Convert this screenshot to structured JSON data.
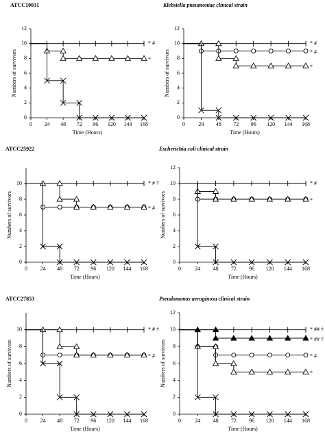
{
  "chart_data": [
    {
      "type": "line",
      "title": "ATCC10031",
      "xlabel": "Time (Hours)",
      "ylabel": "Numbers of survivors",
      "x": [
        0,
        24,
        48,
        72,
        96,
        120,
        144,
        168
      ],
      "xlim": [
        0,
        168
      ],
      "xticks": [
        0,
        24,
        48,
        72,
        96,
        120,
        144,
        168
      ],
      "ylim": [
        0,
        12
      ],
      "yticks": [
        0,
        2,
        4,
        6,
        8,
        10,
        12
      ],
      "series": [
        {
          "marker": "plus",
          "color": "#000",
          "values": [
            10,
            10,
            10,
            10,
            10,
            10,
            10,
            10
          ],
          "annotation": "* #"
        },
        {
          "marker": "triangle",
          "color": "#000",
          "values": [
            10,
            9,
            8,
            8,
            8,
            8,
            8,
            8
          ],
          "annotation": "*"
        },
        {
          "marker": "cross",
          "color": "#000",
          "values": [
            10,
            5,
            2,
            0,
            0,
            0,
            0,
            0
          ]
        }
      ]
    },
    {
      "type": "line",
      "title": "Klebsiella pneumoniae clinical strain",
      "xlabel": "Time (Hours)",
      "ylabel": "Numbers of survivors",
      "x": [
        0,
        24,
        48,
        72,
        96,
        120,
        144,
        168
      ],
      "xlim": [
        0,
        168
      ],
      "xticks": [
        0,
        24,
        48,
        72,
        96,
        120,
        144,
        168
      ],
      "ylim": [
        0,
        12
      ],
      "yticks": [
        0,
        2,
        4,
        6,
        8,
        10,
        12
      ],
      "series": [
        {
          "marker": "plus",
          "color": "#000",
          "values": [
            10,
            10,
            10,
            10,
            10,
            10,
            10,
            10
          ],
          "annotation": "* #"
        },
        {
          "marker": "circle",
          "color": "#000",
          "values": [
            10,
            9,
            9,
            9,
            9,
            9,
            9,
            9
          ],
          "annotation": "* #"
        },
        {
          "marker": "triangle",
          "color": "#000",
          "values": [
            10,
            10,
            8,
            7,
            7,
            7,
            7,
            7
          ],
          "annotation": "*"
        },
        {
          "marker": "cross",
          "color": "#000",
          "values": [
            10,
            1,
            0,
            0,
            0,
            0,
            0,
            0
          ]
        }
      ]
    },
    {
      "type": "line",
      "title": "ATCC25922",
      "xlabel": "Time (Hours)",
      "ylabel": "Numbers of survivors",
      "x": [
        0,
        24,
        48,
        72,
        96,
        120,
        144,
        168
      ],
      "xlim": [
        0,
        168
      ],
      "xticks": [
        0,
        24,
        48,
        72,
        96,
        120,
        144,
        168
      ],
      "ylim": [
        0,
        12
      ],
      "yticks": [
        0,
        2,
        4,
        6,
        8,
        10
      ],
      "series": [
        {
          "marker": "plus",
          "color": "#000",
          "values": [
            10,
            10,
            10,
            10,
            10,
            10,
            10,
            10
          ],
          "annotation": "* # †"
        },
        {
          "marker": "circle",
          "color": "#000",
          "values": [
            10,
            7,
            7,
            7,
            7,
            7,
            7,
            7
          ],
          "annotation": "* #"
        },
        {
          "marker": "triangle",
          "color": "#000",
          "values": [
            10,
            10,
            8,
            7,
            7,
            7,
            7,
            7
          ]
        },
        {
          "marker": "cross",
          "color": "#000",
          "values": [
            10,
            2,
            0,
            0,
            0,
            0,
            0,
            0
          ]
        }
      ]
    },
    {
      "type": "line",
      "title": "Escherichia coli clinical strain",
      "xlabel": "Time (Hours)",
      "ylabel": "Numbers of survivors",
      "x": [
        0,
        24,
        48,
        72,
        96,
        120,
        144,
        168
      ],
      "xlim": [
        0,
        168
      ],
      "xticks": [
        0,
        24,
        48,
        72,
        96,
        120,
        144,
        168
      ],
      "ylim": [
        0,
        12
      ],
      "yticks": [
        0,
        2,
        4,
        6,
        8,
        10,
        12
      ],
      "series": [
        {
          "marker": "plus",
          "color": "#000",
          "values": [
            10,
            10,
            10,
            10,
            10,
            10,
            10,
            10
          ],
          "annotation": "* #"
        },
        {
          "marker": "circle",
          "color": "#000",
          "values": [
            10,
            8,
            8,
            8,
            8,
            8,
            8,
            8
          ],
          "annotation": "*"
        },
        {
          "marker": "triangle",
          "color": "#000",
          "values": [
            10,
            9,
            8,
            8,
            8,
            8,
            8,
            8
          ]
        },
        {
          "marker": "cross",
          "color": "#000",
          "values": [
            10,
            2,
            0,
            0,
            0,
            0,
            0,
            0
          ]
        }
      ]
    },
    {
      "type": "line",
      "title": "ATCC27853",
      "xlabel": "Time (Hours)",
      "ylabel": "Numbers of survivors",
      "x": [
        0,
        24,
        48,
        72,
        96,
        120,
        144,
        168
      ],
      "xlim": [
        0,
        168
      ],
      "xticks": [
        0,
        24,
        48,
        72,
        96,
        120,
        144,
        168
      ],
      "ylim": [
        0,
        12
      ],
      "yticks": [
        0,
        2,
        4,
        6,
        8,
        10
      ],
      "series": [
        {
          "marker": "plus",
          "color": "#000",
          "values": [
            10,
            10,
            10,
            10,
            10,
            10,
            10,
            10
          ],
          "annotation": "* # †"
        },
        {
          "marker": "circle",
          "color": "#000",
          "values": [
            10,
            7,
            7,
            7,
            7,
            7,
            7,
            7
          ],
          "annotation": "* #"
        },
        {
          "marker": "triangle",
          "color": "#000",
          "values": [
            10,
            10,
            8,
            7,
            7,
            7,
            7,
            7
          ]
        },
        {
          "marker": "cross",
          "color": "#000",
          "values": [
            10,
            6,
            2,
            0,
            0,
            0,
            0,
            0
          ]
        }
      ]
    },
    {
      "type": "line",
      "title": "Pseudomonas aeruginosa clinical strain",
      "xlabel": "Time (Hours)",
      "ylabel": "Numbers of survivors",
      "x": [
        0,
        24,
        48,
        72,
        96,
        120,
        144,
        168
      ],
      "xlim": [
        0,
        168
      ],
      "xticks": [
        0,
        24,
        48,
        72,
        96,
        120,
        144,
        168
      ],
      "ylim": [
        0,
        12
      ],
      "yticks": [
        0,
        2,
        4,
        6,
        8,
        10,
        12
      ],
      "series": [
        {
          "marker": "plus",
          "color": "#000",
          "values": [
            10,
            10,
            10,
            10,
            10,
            10,
            10,
            10
          ],
          "annotation": "* ## †"
        },
        {
          "marker": "filled-triangle",
          "color": "#000",
          "values": [
            10,
            10,
            9,
            9,
            9,
            9,
            9,
            9
          ],
          "annotation": "* ## †"
        },
        {
          "marker": "circle",
          "color": "#000",
          "values": [
            10,
            8,
            7,
            7,
            7,
            7,
            7,
            7
          ],
          "annotation": "* #"
        },
        {
          "marker": "triangle",
          "color": "#000",
          "values": [
            10,
            8,
            6,
            5,
            5,
            5,
            5,
            5
          ],
          "annotation": "*"
        },
        {
          "marker": "cross",
          "color": "#000",
          "values": [
            10,
            2,
            0,
            0,
            0,
            0,
            0,
            0
          ]
        }
      ]
    }
  ]
}
